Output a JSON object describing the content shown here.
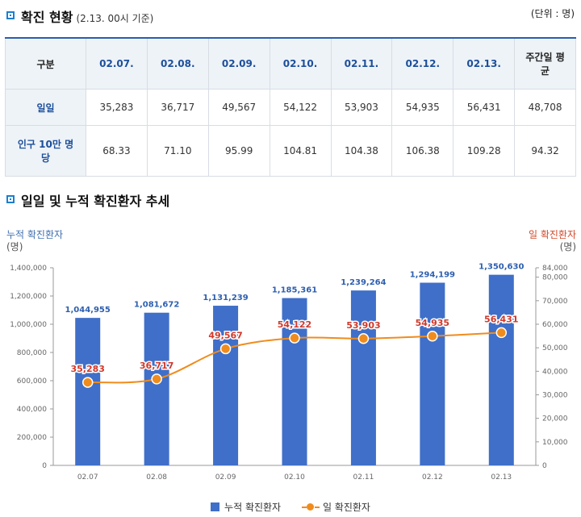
{
  "section1": {
    "title": "확진 현황",
    "note": "(2.13. 00시 기준)",
    "unit": "(단위 : 명)"
  },
  "table": {
    "header": [
      "구분",
      "02.07.",
      "02.08.",
      "02.09.",
      "02.10.",
      "02.11.",
      "02.12.",
      "02.13.",
      "주간일 평균"
    ],
    "rows": [
      {
        "label": "일일",
        "values": [
          "35,283",
          "36,717",
          "49,567",
          "54,122",
          "53,903",
          "54,935",
          "56,431",
          "48,708"
        ]
      },
      {
        "label": "인구 10만 명 당",
        "values": [
          "68.33",
          "71.10",
          "95.99",
          "104.81",
          "104.38",
          "106.38",
          "109.28",
          "94.32"
        ]
      }
    ]
  },
  "section2": {
    "title": "일일 및 누적 확진환자 추세"
  },
  "axes": {
    "left_title": "누적 확진환자",
    "left_unit": "(명)",
    "right_title": "일 확진환자",
    "right_unit": "(명)"
  },
  "legend": {
    "bar": "누적 확진환자",
    "line": "일 확진환자"
  },
  "chart_data": {
    "type": "bar",
    "categories": [
      "02.07",
      "02.08",
      "02.09",
      "02.10",
      "02.11",
      "02.12",
      "02.13"
    ],
    "series": [
      {
        "name": "누적 확진환자",
        "type": "bar",
        "axis": "left",
        "values": [
          1044955,
          1081672,
          1131239,
          1185361,
          1239264,
          1294199,
          1350630
        ],
        "labels": [
          "1,044,955",
          "1,081,672",
          "1,131,239",
          "1,185,361",
          "1,239,264",
          "1,294,199",
          "1,350,630"
        ]
      },
      {
        "name": "일 확진환자",
        "type": "line",
        "axis": "right",
        "values": [
          35283,
          36717,
          49567,
          54122,
          53903,
          54935,
          56431
        ],
        "labels": [
          "35,283",
          "36,717",
          "49,567",
          "54,122",
          "53,903",
          "54,935",
          "56,431"
        ]
      }
    ],
    "left_axis": {
      "ylim": [
        0,
        1400000
      ],
      "ticks": [
        "0",
        "200,000",
        "400,000",
        "600,000",
        "800,000",
        "1,000,000",
        "1,200,000",
        "1,400,000"
      ]
    },
    "right_axis": {
      "ylim": [
        0,
        84000
      ],
      "ticks": [
        "0",
        "10,000",
        "20,000",
        "30,000",
        "40,000",
        "50,000",
        "60,000",
        "70,000",
        "80,000",
        "84,000"
      ]
    },
    "colors": {
      "bar": "#3f6fc8",
      "bar_label": "#2d5fb0",
      "line": "#f08c1d",
      "line_label": "#d0392b"
    },
    "grid": false,
    "legend_position": "bottom"
  }
}
